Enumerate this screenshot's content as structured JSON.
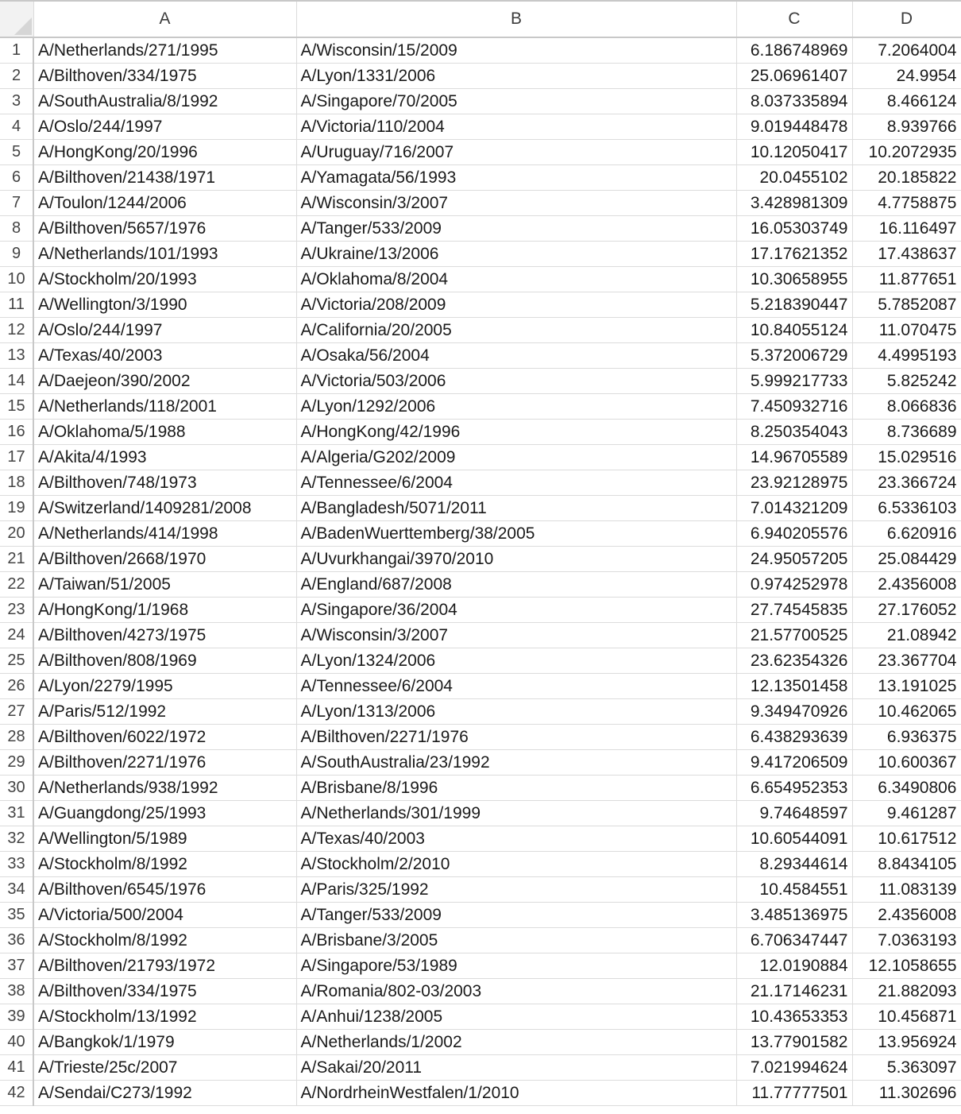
{
  "columns": [
    "A",
    "B",
    "C",
    "D"
  ],
  "rows": [
    {
      "n": "1",
      "a": "A/Netherlands/271/1995",
      "b": "A/Wisconsin/15/2009",
      "c": "6.186748969",
      "d": "7.2064004"
    },
    {
      "n": "2",
      "a": "A/Bilthoven/334/1975",
      "b": "A/Lyon/1331/2006",
      "c": "25.06961407",
      "d": "24.9954"
    },
    {
      "n": "3",
      "a": "A/SouthAustralia/8/1992",
      "b": "A/Singapore/70/2005",
      "c": "8.037335894",
      "d": "8.466124"
    },
    {
      "n": "4",
      "a": "A/Oslo/244/1997",
      "b": "A/Victoria/110/2004",
      "c": "9.019448478",
      "d": "8.939766"
    },
    {
      "n": "5",
      "a": "A/HongKong/20/1996",
      "b": "A/Uruguay/716/2007",
      "c": "10.12050417",
      "d": "10.2072935"
    },
    {
      "n": "6",
      "a": "A/Bilthoven/21438/1971",
      "b": "A/Yamagata/56/1993",
      "c": "20.0455102",
      "d": "20.185822"
    },
    {
      "n": "7",
      "a": "A/Toulon/1244/2006",
      "b": "A/Wisconsin/3/2007",
      "c": "3.428981309",
      "d": "4.7758875"
    },
    {
      "n": "8",
      "a": "A/Bilthoven/5657/1976",
      "b": "A/Tanger/533/2009",
      "c": "16.05303749",
      "d": "16.116497"
    },
    {
      "n": "9",
      "a": "A/Netherlands/101/1993",
      "b": "A/Ukraine/13/2006",
      "c": "17.17621352",
      "d": "17.438637"
    },
    {
      "n": "10",
      "a": "A/Stockholm/20/1993",
      "b": "A/Oklahoma/8/2004",
      "c": "10.30658955",
      "d": "11.877651"
    },
    {
      "n": "11",
      "a": "A/Wellington/3/1990",
      "b": "A/Victoria/208/2009",
      "c": "5.218390447",
      "d": "5.7852087"
    },
    {
      "n": "12",
      "a": "A/Oslo/244/1997",
      "b": "A/California/20/2005",
      "c": "10.84055124",
      "d": "11.070475"
    },
    {
      "n": "13",
      "a": "A/Texas/40/2003",
      "b": "A/Osaka/56/2004",
      "c": "5.372006729",
      "d": "4.4995193"
    },
    {
      "n": "14",
      "a": "A/Daejeon/390/2002",
      "b": "A/Victoria/503/2006",
      "c": "5.999217733",
      "d": "5.825242"
    },
    {
      "n": "15",
      "a": "A/Netherlands/118/2001",
      "b": "A/Lyon/1292/2006",
      "c": "7.450932716",
      "d": "8.066836"
    },
    {
      "n": "16",
      "a": "A/Oklahoma/5/1988",
      "b": "A/HongKong/42/1996",
      "c": "8.250354043",
      "d": "8.736689"
    },
    {
      "n": "17",
      "a": "A/Akita/4/1993",
      "b": "A/Algeria/G202/2009",
      "c": "14.96705589",
      "d": "15.029516"
    },
    {
      "n": "18",
      "a": "A/Bilthoven/748/1973",
      "b": "A/Tennessee/6/2004",
      "c": "23.92128975",
      "d": "23.366724"
    },
    {
      "n": "19",
      "a": "A/Switzerland/1409281/2008",
      "b": "A/Bangladesh/5071/2011",
      "c": "7.014321209",
      "d": "6.5336103"
    },
    {
      "n": "20",
      "a": "A/Netherlands/414/1998",
      "b": "A/BadenWuerttemberg/38/2005",
      "c": "6.940205576",
      "d": "6.620916"
    },
    {
      "n": "21",
      "a": "A/Bilthoven/2668/1970",
      "b": "A/Uvurkhangai/3970/2010",
      "c": "24.95057205",
      "d": "25.084429"
    },
    {
      "n": "22",
      "a": "A/Taiwan/51/2005",
      "b": "A/England/687/2008",
      "c": "0.974252978",
      "d": "2.4356008"
    },
    {
      "n": "23",
      "a": "A/HongKong/1/1968",
      "b": "A/Singapore/36/2004",
      "c": "27.74545835",
      "d": "27.176052"
    },
    {
      "n": "24",
      "a": "A/Bilthoven/4273/1975",
      "b": "A/Wisconsin/3/2007",
      "c": "21.57700525",
      "d": "21.08942"
    },
    {
      "n": "25",
      "a": "A/Bilthoven/808/1969",
      "b": "A/Lyon/1324/2006",
      "c": "23.62354326",
      "d": "23.367704"
    },
    {
      "n": "26",
      "a": "A/Lyon/2279/1995",
      "b": "A/Tennessee/6/2004",
      "c": "12.13501458",
      "d": "13.191025"
    },
    {
      "n": "27",
      "a": "A/Paris/512/1992",
      "b": "A/Lyon/1313/2006",
      "c": "9.349470926",
      "d": "10.462065"
    },
    {
      "n": "28",
      "a": "A/Bilthoven/6022/1972",
      "b": "A/Bilthoven/2271/1976",
      "c": "6.438293639",
      "d": "6.936375"
    },
    {
      "n": "29",
      "a": "A/Bilthoven/2271/1976",
      "b": "A/SouthAustralia/23/1992",
      "c": "9.417206509",
      "d": "10.600367"
    },
    {
      "n": "30",
      "a": "A/Netherlands/938/1992",
      "b": "A/Brisbane/8/1996",
      "c": "6.654952353",
      "d": "6.3490806"
    },
    {
      "n": "31",
      "a": "A/Guangdong/25/1993",
      "b": "A/Netherlands/301/1999",
      "c": "9.74648597",
      "d": "9.461287"
    },
    {
      "n": "32",
      "a": "A/Wellington/5/1989",
      "b": "A/Texas/40/2003",
      "c": "10.60544091",
      "d": "10.617512"
    },
    {
      "n": "33",
      "a": "A/Stockholm/8/1992",
      "b": "A/Stockholm/2/2010",
      "c": "8.29344614",
      "d": "8.8434105"
    },
    {
      "n": "34",
      "a": "A/Bilthoven/6545/1976",
      "b": "A/Paris/325/1992",
      "c": "10.4584551",
      "d": "11.083139"
    },
    {
      "n": "35",
      "a": "A/Victoria/500/2004",
      "b": "A/Tanger/533/2009",
      "c": "3.485136975",
      "d": "2.4356008"
    },
    {
      "n": "36",
      "a": "A/Stockholm/8/1992",
      "b": "A/Brisbane/3/2005",
      "c": "6.706347447",
      "d": "7.0363193"
    },
    {
      "n": "37",
      "a": "A/Bilthoven/21793/1972",
      "b": "A/Singapore/53/1989",
      "c": "12.0190884",
      "d": "12.1058655"
    },
    {
      "n": "38",
      "a": "A/Bilthoven/334/1975",
      "b": "A/Romania/802-03/2003",
      "c": "21.17146231",
      "d": "21.882093"
    },
    {
      "n": "39",
      "a": "A/Stockholm/13/1992",
      "b": "A/Anhui/1238/2005",
      "c": "10.43653353",
      "d": "10.456871"
    },
    {
      "n": "40",
      "a": "A/Bangkok/1/1979",
      "b": "A/Netherlands/1/2002",
      "c": "13.77901582",
      "d": "13.956924"
    },
    {
      "n": "41",
      "a": "A/Trieste/25c/2007",
      "b": "A/Sakai/20/2011",
      "c": "7.021994624",
      "d": "5.363097"
    },
    {
      "n": "42",
      "a": "A/Sendai/C273/1992",
      "b": "A/NordrheinWestfalen/1/2010",
      "c": "11.77777501",
      "d": "11.302696"
    }
  ]
}
